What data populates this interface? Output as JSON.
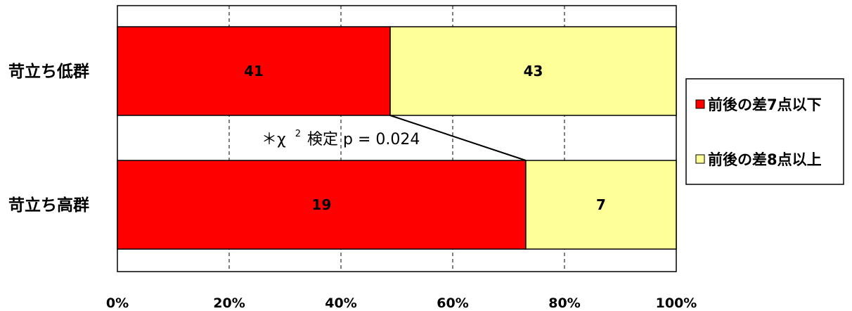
{
  "chart_data": {
    "type": "bar",
    "orientation": "horizontal",
    "stacked": "percent",
    "categories": [
      "苛立ち低群",
      "苛立ち高群"
    ],
    "series": [
      {
        "name": "前後の差7点以下",
        "values": [
          41,
          19
        ],
        "color": "#ff0000"
      },
      {
        "name": "前後の差8点以上",
        "values": [
          43,
          7
        ],
        "color": "#ffff99"
      }
    ],
    "xlim": [
      0,
      100
    ],
    "x_ticks": [
      "0%",
      "20%",
      "40%",
      "60%",
      "80%",
      "100%"
    ],
    "grid": "vertical-dashed",
    "legend_position": "right",
    "annotation": {
      "prefix": "＊χ",
      "superscript": "2",
      "text": "検定  p = 0.024"
    }
  }
}
